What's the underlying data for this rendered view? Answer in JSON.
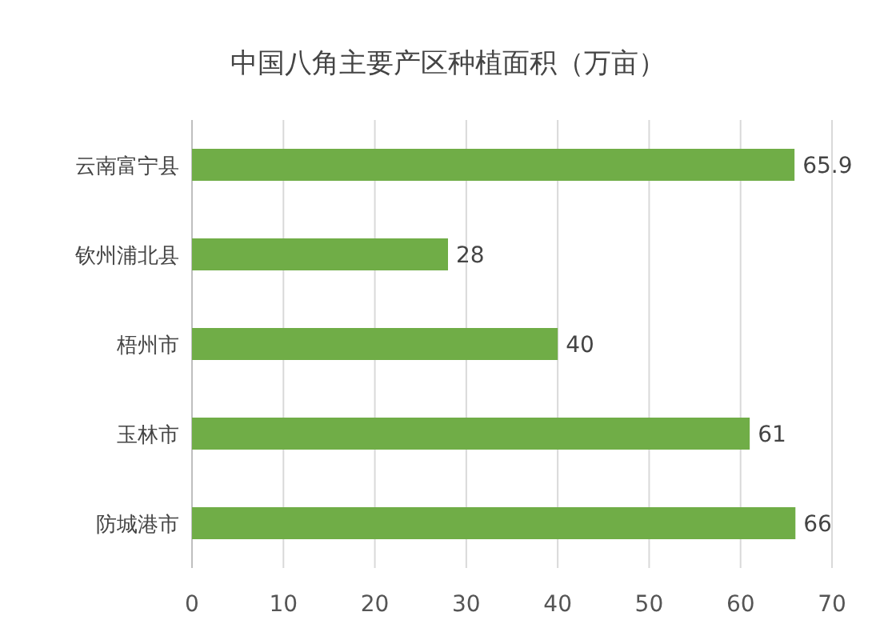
{
  "chart_data": {
    "type": "bar",
    "orientation": "horizontal",
    "title": "中国八角主要产区种植面积（万亩）",
    "categories": [
      "云南富宁县",
      "钦州浦北县",
      "梧州市",
      "玉林市",
      "防城港市"
    ],
    "values": [
      65.9,
      28,
      40,
      61,
      66
    ],
    "color": "#70ad47",
    "xlim": [
      0,
      70
    ],
    "xticks": [
      0,
      10,
      20,
      30,
      40,
      50,
      60,
      70
    ],
    "grid": "x",
    "data_labels": true
  }
}
